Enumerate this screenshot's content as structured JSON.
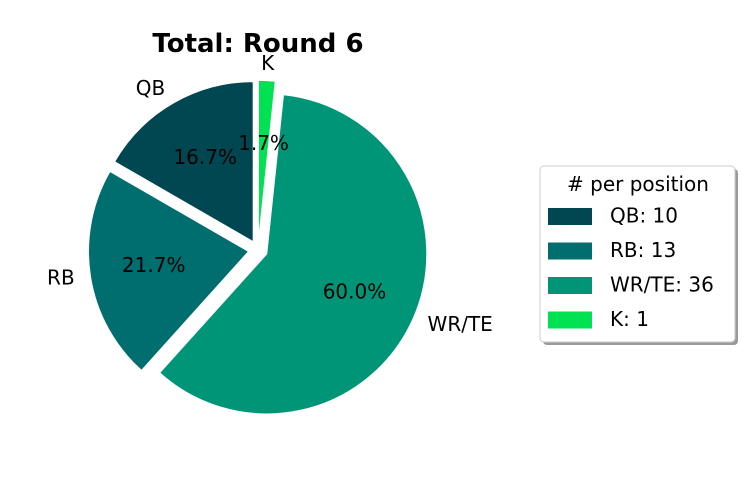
{
  "chart_data": {
    "type": "pie",
    "title": "Total: Round 6",
    "categories": [
      "QB",
      "RB",
      "WR/TE",
      "K"
    ],
    "values": [
      10,
      13,
      36,
      1
    ],
    "percent_labels": [
      "16.7%",
      "21.7%",
      "60.0%",
      "1.7%"
    ],
    "colors": [
      "#004752",
      "#006e6e",
      "#009577",
      "#00e252"
    ],
    "exploded": true,
    "start_angle_deg": 90,
    "direction": "counterclockwise",
    "legend": {
      "title": "# per position",
      "entries": [
        "QB: 10",
        "RB: 13",
        "WR/TE: 36",
        "K: 1"
      ],
      "placement": "right"
    }
  }
}
